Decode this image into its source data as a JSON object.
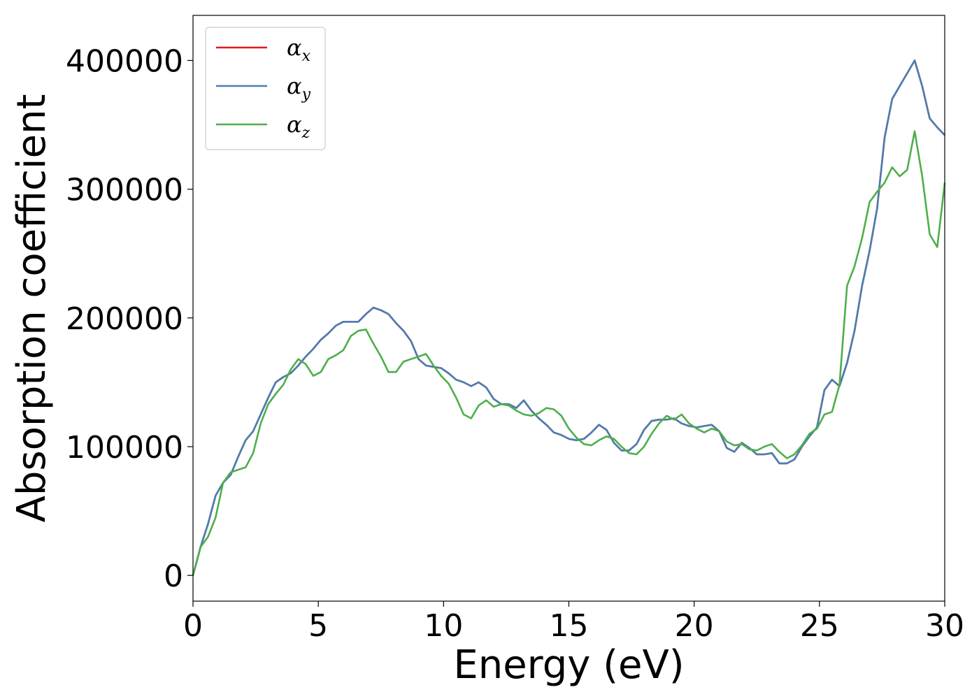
{
  "chart_data": {
    "type": "line",
    "title": "",
    "xlabel": "Energy (eV)",
    "ylabel": "Absorption coefficient",
    "xlim": [
      0,
      30
    ],
    "ylim": [
      -20000,
      435000
    ],
    "x_ticks": [
      0,
      5,
      10,
      15,
      20,
      25,
      30
    ],
    "y_ticks": [
      0,
      100000,
      200000,
      300000,
      400000
    ],
    "grid": false,
    "legend_position": "top-left",
    "series": [
      {
        "name": "α_x",
        "legend_symbol": "α",
        "legend_sub": "x",
        "color": "#e41a1c",
        "x": [
          0,
          0.3,
          0.6,
          0.9,
          1.2,
          1.5,
          1.8,
          2.1,
          2.4,
          2.7,
          3.0,
          3.3,
          3.6,
          3.9,
          4.2,
          4.5,
          4.8,
          5.1,
          5.4,
          5.7,
          6.0,
          6.3,
          6.6,
          6.9,
          7.2,
          7.5,
          7.8,
          8.1,
          8.4,
          8.7,
          9.0,
          9.3,
          9.6,
          9.9,
          10.2,
          10.5,
          10.8,
          11.1,
          11.4,
          11.7,
          12.0,
          12.3,
          12.6,
          12.9,
          13.2,
          13.5,
          13.8,
          14.1,
          14.4,
          14.7,
          15.0,
          15.3,
          15.6,
          15.9,
          16.2,
          16.5,
          16.8,
          17.1,
          17.4,
          17.7,
          18.0,
          18.3,
          18.6,
          18.9,
          19.2,
          19.5,
          19.8,
          20.1,
          20.4,
          20.7,
          21.0,
          21.3,
          21.6,
          21.9,
          22.2,
          22.5,
          22.8,
          23.1,
          23.4,
          23.7,
          24.0,
          24.3,
          24.6,
          24.9,
          25.2,
          25.5,
          25.8,
          26.1,
          26.4,
          26.7,
          27.0,
          27.3,
          27.6,
          27.9,
          28.2,
          28.5,
          28.8,
          29.1,
          29.4,
          29.7,
          30.0
        ],
        "values": [
          0,
          22000,
          40000,
          62000,
          72000,
          78000,
          92000,
          105000,
          112000,
          125000,
          138000,
          150000,
          154000,
          157000,
          163000,
          170000,
          176000,
          183000,
          188000,
          194000,
          197000,
          197000,
          197000,
          203000,
          208000,
          206000,
          203000,
          196000,
          190000,
          182000,
          168000,
          163000,
          162000,
          161000,
          157000,
          152000,
          150000,
          147000,
          150000,
          146000,
          137000,
          133000,
          133000,
          130000,
          136000,
          128000,
          122000,
          117000,
          111000,
          109000,
          106000,
          105000,
          106000,
          111000,
          117000,
          113000,
          103000,
          97000,
          97000,
          102000,
          113000,
          120000,
          121000,
          121000,
          122000,
          118000,
          116000,
          115000,
          116000,
          117000,
          112000,
          99000,
          96000,
          103000,
          99000,
          94000,
          94000,
          95000,
          87000,
          87000,
          90000,
          100000,
          108000,
          115000,
          144000,
          152000,
          147000,
          165000,
          190000,
          225000,
          252000,
          285000,
          340000,
          370000,
          380000,
          390000,
          400000,
          380000,
          355000,
          348000,
          342000
        ]
      },
      {
        "name": "α_y",
        "legend_symbol": "α",
        "legend_sub": "y",
        "color": "#4a7eb2",
        "x": [
          0,
          0.3,
          0.6,
          0.9,
          1.2,
          1.5,
          1.8,
          2.1,
          2.4,
          2.7,
          3.0,
          3.3,
          3.6,
          3.9,
          4.2,
          4.5,
          4.8,
          5.1,
          5.4,
          5.7,
          6.0,
          6.3,
          6.6,
          6.9,
          7.2,
          7.5,
          7.8,
          8.1,
          8.4,
          8.7,
          9.0,
          9.3,
          9.6,
          9.9,
          10.2,
          10.5,
          10.8,
          11.1,
          11.4,
          11.7,
          12.0,
          12.3,
          12.6,
          12.9,
          13.2,
          13.5,
          13.8,
          14.1,
          14.4,
          14.7,
          15.0,
          15.3,
          15.6,
          15.9,
          16.2,
          16.5,
          16.8,
          17.1,
          17.4,
          17.7,
          18.0,
          18.3,
          18.6,
          18.9,
          19.2,
          19.5,
          19.8,
          20.1,
          20.4,
          20.7,
          21.0,
          21.3,
          21.6,
          21.9,
          22.2,
          22.5,
          22.8,
          23.1,
          23.4,
          23.7,
          24.0,
          24.3,
          24.6,
          24.9,
          25.2,
          25.5,
          25.8,
          26.1,
          26.4,
          26.7,
          27.0,
          27.3,
          27.6,
          27.9,
          28.2,
          28.5,
          28.8,
          29.1,
          29.4,
          29.7,
          30.0
        ],
        "values": [
          0,
          22000,
          40000,
          62000,
          72000,
          78000,
          92000,
          105000,
          112000,
          125000,
          138000,
          150000,
          154000,
          157000,
          163000,
          170000,
          176000,
          183000,
          188000,
          194000,
          197000,
          197000,
          197000,
          203000,
          208000,
          206000,
          203000,
          196000,
          190000,
          182000,
          168000,
          163000,
          162000,
          161000,
          157000,
          152000,
          150000,
          147000,
          150000,
          146000,
          137000,
          133000,
          133000,
          130000,
          136000,
          128000,
          122000,
          117000,
          111000,
          109000,
          106000,
          105000,
          106000,
          111000,
          117000,
          113000,
          103000,
          97000,
          97000,
          102000,
          113000,
          120000,
          121000,
          121000,
          122000,
          118000,
          116000,
          115000,
          116000,
          117000,
          112000,
          99000,
          96000,
          103000,
          99000,
          94000,
          94000,
          95000,
          87000,
          87000,
          90000,
          100000,
          108000,
          115000,
          144000,
          152000,
          147000,
          165000,
          190000,
          225000,
          252000,
          285000,
          340000,
          370000,
          380000,
          390000,
          400000,
          380000,
          355000,
          348000,
          342000
        ]
      },
      {
        "name": "α_z",
        "legend_symbol": "α",
        "legend_sub": "z",
        "color": "#4daf4a",
        "x": [
          0,
          0.3,
          0.6,
          0.9,
          1.2,
          1.5,
          1.8,
          2.1,
          2.4,
          2.7,
          3.0,
          3.3,
          3.6,
          3.9,
          4.2,
          4.5,
          4.8,
          5.1,
          5.4,
          5.7,
          6.0,
          6.3,
          6.6,
          6.9,
          7.2,
          7.5,
          7.8,
          8.1,
          8.4,
          8.7,
          9.0,
          9.3,
          9.6,
          9.9,
          10.2,
          10.5,
          10.8,
          11.1,
          11.4,
          11.7,
          12.0,
          12.3,
          12.6,
          12.9,
          13.2,
          13.5,
          13.8,
          14.1,
          14.4,
          14.7,
          15.0,
          15.3,
          15.6,
          15.9,
          16.2,
          16.5,
          16.8,
          17.1,
          17.4,
          17.7,
          18.0,
          18.3,
          18.6,
          18.9,
          19.2,
          19.5,
          19.8,
          20.1,
          20.4,
          20.7,
          21.0,
          21.3,
          21.6,
          21.9,
          22.2,
          22.5,
          22.8,
          23.1,
          23.4,
          23.7,
          24.0,
          24.3,
          24.6,
          24.9,
          25.2,
          25.5,
          25.8,
          26.1,
          26.4,
          26.7,
          27.0,
          27.3,
          27.6,
          27.9,
          28.2,
          28.5,
          28.8,
          29.1,
          29.4,
          29.7,
          30.0
        ],
        "values": [
          0,
          22000,
          30000,
          45000,
          72000,
          80000,
          82000,
          84000,
          95000,
          118000,
          133000,
          141000,
          148000,
          160000,
          168000,
          164000,
          155000,
          158000,
          168000,
          171000,
          175000,
          186000,
          190000,
          191000,
          180000,
          170000,
          158000,
          158000,
          166000,
          168000,
          170000,
          172000,
          163000,
          155000,
          149000,
          138000,
          125000,
          122000,
          132000,
          136000,
          131000,
          133000,
          132000,
          128000,
          125000,
          124000,
          126000,
          130000,
          129000,
          124000,
          114000,
          107000,
          102000,
          101000,
          105000,
          108000,
          106000,
          100000,
          95000,
          94000,
          100000,
          110000,
          118000,
          124000,
          121000,
          125000,
          118000,
          114000,
          111000,
          114000,
          112000,
          104000,
          101000,
          102000,
          98000,
          97000,
          100000,
          102000,
          96000,
          91000,
          94000,
          101000,
          110000,
          114000,
          125000,
          127000,
          148000,
          225000,
          240000,
          262000,
          290000,
          298000,
          305000,
          317000,
          310000,
          315000,
          345000,
          310000,
          265000,
          255000,
          305000
        ]
      }
    ]
  }
}
